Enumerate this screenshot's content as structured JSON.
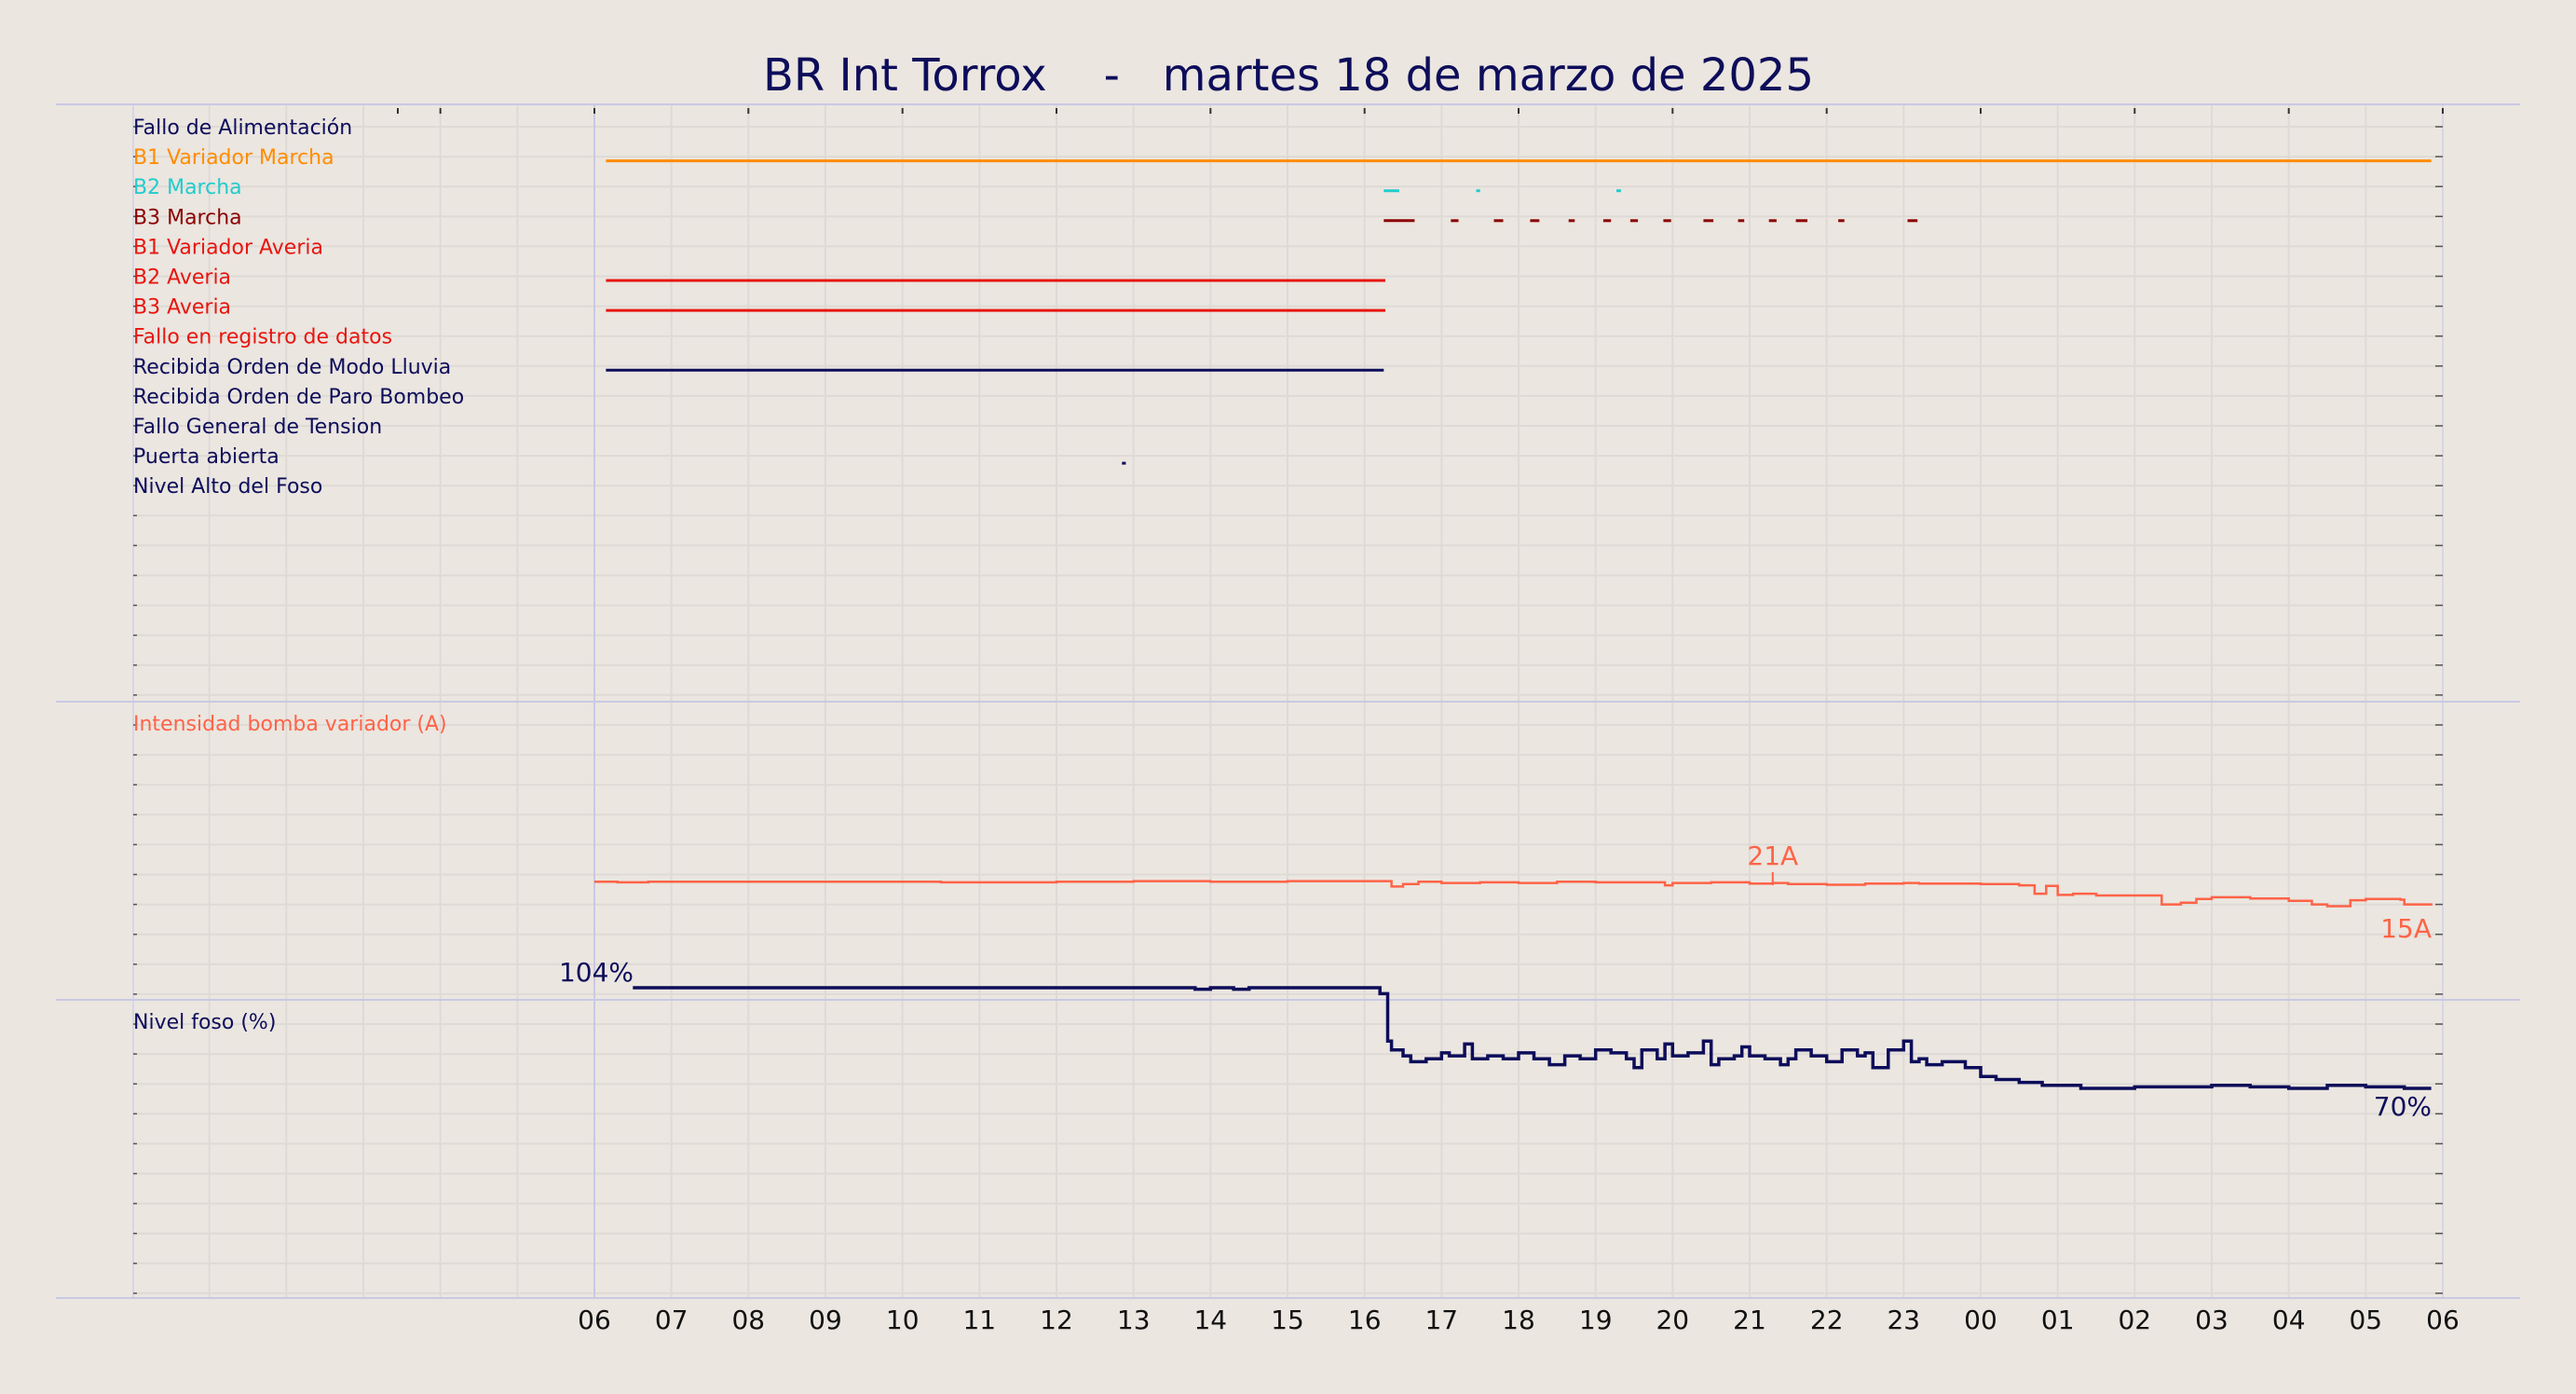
{
  "title": "BR Int Torrox    -   martes 18 de marzo de 2025",
  "colors": {
    "background": "#ebe6e0",
    "grid": "#dedad6",
    "separator": "#c9c9e4",
    "navy": "#0d0d5a",
    "orange": "#ff8c00",
    "cyan": "#22cccc",
    "darkred": "#8b0000",
    "red": "#e8150f",
    "salmon": "#ff6347"
  },
  "x_axis": {
    "tick_labels": [
      "06",
      "07",
      "08",
      "09",
      "10",
      "11",
      "12",
      "13",
      "14",
      "15",
      "16",
      "17",
      "18",
      "19",
      "20",
      "21",
      "22",
      "23",
      "00",
      "01",
      "02",
      "03",
      "04",
      "05",
      "06"
    ],
    "start_hour": 6,
    "span_hours": 24
  },
  "chart_data": [
    {
      "type": "timeline",
      "title": "",
      "rows": [
        {
          "label": "Fallo de Alimentación",
          "color": "#0d0d5a",
          "segments": []
        },
        {
          "label": "B1 Variador Marcha",
          "color": "#ff8c00",
          "segments": [
            [
              6.15,
              29.85
            ]
          ]
        },
        {
          "label": "B2 Marcha",
          "color": "#22cccc",
          "segments": [
            [
              16.25,
              16.45
            ],
            [
              17.45,
              17.5
            ],
            [
              19.27,
              19.33
            ]
          ]
        },
        {
          "label": "B3 Marcha",
          "color": "#8b0000",
          "segments": [
            [
              16.25,
              16.65
            ],
            [
              17.12,
              17.22
            ],
            [
              17.68,
              17.8
            ],
            [
              18.15,
              18.27
            ],
            [
              18.65,
              18.73
            ],
            [
              19.1,
              19.2
            ],
            [
              19.45,
              19.55
            ],
            [
              19.88,
              19.98
            ],
            [
              20.4,
              20.53
            ],
            [
              20.85,
              20.93
            ],
            [
              21.25,
              21.35
            ],
            [
              21.6,
              21.75
            ],
            [
              22.15,
              22.23
            ],
            [
              23.05,
              23.18
            ]
          ]
        },
        {
          "label": "B1 Variador Averia",
          "color": "#e8150f",
          "segments": []
        },
        {
          "label": "B2 Averia",
          "color": "#e8150f",
          "segments": [
            [
              6.15,
              16.27
            ]
          ]
        },
        {
          "label": "B3 Averia",
          "color": "#e8150f",
          "segments": [
            [
              6.15,
              16.27
            ]
          ]
        },
        {
          "label": "Fallo en registro de datos",
          "color": "#e8150f",
          "segments": []
        },
        {
          "label": "Recibida Orden de Modo Lluvia",
          "color": "#0d0d5a",
          "segments": [
            [
              6.15,
              16.25
            ]
          ]
        },
        {
          "label": "Recibida Orden de Paro Bombeo",
          "color": "#0d0d5a",
          "segments": []
        },
        {
          "label": "Fallo General de Tension",
          "color": "#0d0d5a",
          "segments": []
        },
        {
          "label": "Puerta abierta",
          "color": "#0d0d5a",
          "segments": [
            [
              12.85,
              12.9
            ]
          ]
        },
        {
          "label": "Nivel Alto del Foso",
          "color": "#0d0d5a",
          "segments": []
        }
      ]
    },
    {
      "type": "line",
      "series_label": "Intensidad bomba variador (A)",
      "color": "#ff6347",
      "unit": "A",
      "ylim": [
        0,
        50
      ],
      "max_label": "21A",
      "end_label": "15A",
      "x": [
        6.0,
        6.3,
        6.7,
        7.5,
        9.0,
        10.5,
        12.0,
        13.0,
        14.0,
        15.0,
        16.0,
        16.35,
        16.5,
        16.7,
        17.0,
        17.5,
        18.0,
        18.5,
        19.0,
        19.5,
        19.9,
        20.0,
        20.5,
        21.0,
        21.3,
        21.5,
        22.0,
        22.5,
        23.0,
        23.2,
        24.0,
        24.5,
        24.7,
        24.85,
        25.0,
        25.2,
        25.5,
        26.0,
        26.35,
        26.6,
        26.8,
        27.0,
        27.5,
        28.0,
        28.3,
        28.5,
        28.8,
        29.0,
        29.45,
        29.5,
        29.85
      ],
      "y": [
        19.8,
        19.7,
        19.8,
        19.8,
        19.8,
        19.7,
        19.8,
        19.9,
        19.8,
        19.9,
        19.9,
        19.0,
        19.4,
        19.8,
        19.6,
        19.7,
        19.6,
        19.8,
        19.7,
        19.7,
        19.2,
        19.6,
        19.7,
        19.5,
        19.6,
        19.4,
        19.3,
        19.5,
        19.6,
        19.5,
        19.4,
        19.2,
        17.8,
        19.1,
        17.6,
        17.8,
        17.5,
        17.5,
        16.0,
        16.3,
        16.9,
        17.2,
        17.0,
        16.6,
        16.0,
        15.7,
        16.7,
        16.9,
        16.8,
        16.0,
        15.8
      ]
    },
    {
      "type": "line",
      "series_label": "Nivel foso (%)",
      "color": "#0d0d5a",
      "unit": "%",
      "ylim": [
        0,
        200
      ],
      "start_label": "104%",
      "end_label": "70%",
      "x": [
        6.5,
        10.0,
        13.8,
        14.0,
        14.3,
        14.5,
        15.0,
        16.0,
        16.2,
        16.3,
        16.35,
        16.5,
        16.6,
        16.8,
        17.0,
        17.1,
        17.3,
        17.4,
        17.6,
        17.8,
        18.0,
        18.2,
        18.4,
        18.6,
        18.8,
        19.0,
        19.2,
        19.4,
        19.5,
        19.6,
        19.8,
        19.9,
        20.0,
        20.2,
        20.4,
        20.5,
        20.6,
        20.8,
        20.9,
        21.0,
        21.2,
        21.4,
        21.5,
        21.6,
        21.8,
        22.0,
        22.2,
        22.4,
        22.5,
        22.6,
        22.8,
        23.0,
        23.1,
        23.2,
        23.3,
        23.5,
        23.8,
        24.0,
        24.2,
        24.5,
        24.8,
        25.0,
        25.3,
        26.0,
        26.5,
        27.0,
        27.5,
        28.0,
        28.5,
        29.0,
        29.5,
        29.85
      ],
      "y": [
        104,
        104,
        103.5,
        104,
        103.5,
        104,
        104,
        104,
        102,
        86,
        83,
        81,
        79,
        80,
        82,
        81,
        85,
        80,
        81,
        80,
        82,
        80,
        78,
        81,
        80,
        83,
        82,
        80,
        77,
        83,
        80,
        85,
        81,
        82,
        86,
        78,
        80,
        81,
        84,
        81,
        80,
        78,
        80,
        83,
        81,
        79,
        83,
        81,
        82,
        77,
        83,
        86,
        79,
        80,
        78,
        79,
        77,
        74,
        73,
        72,
        71,
        71,
        70,
        70.5,
        70.5,
        71,
        70.5,
        70,
        71,
        70.5,
        70,
        70
      ]
    }
  ]
}
